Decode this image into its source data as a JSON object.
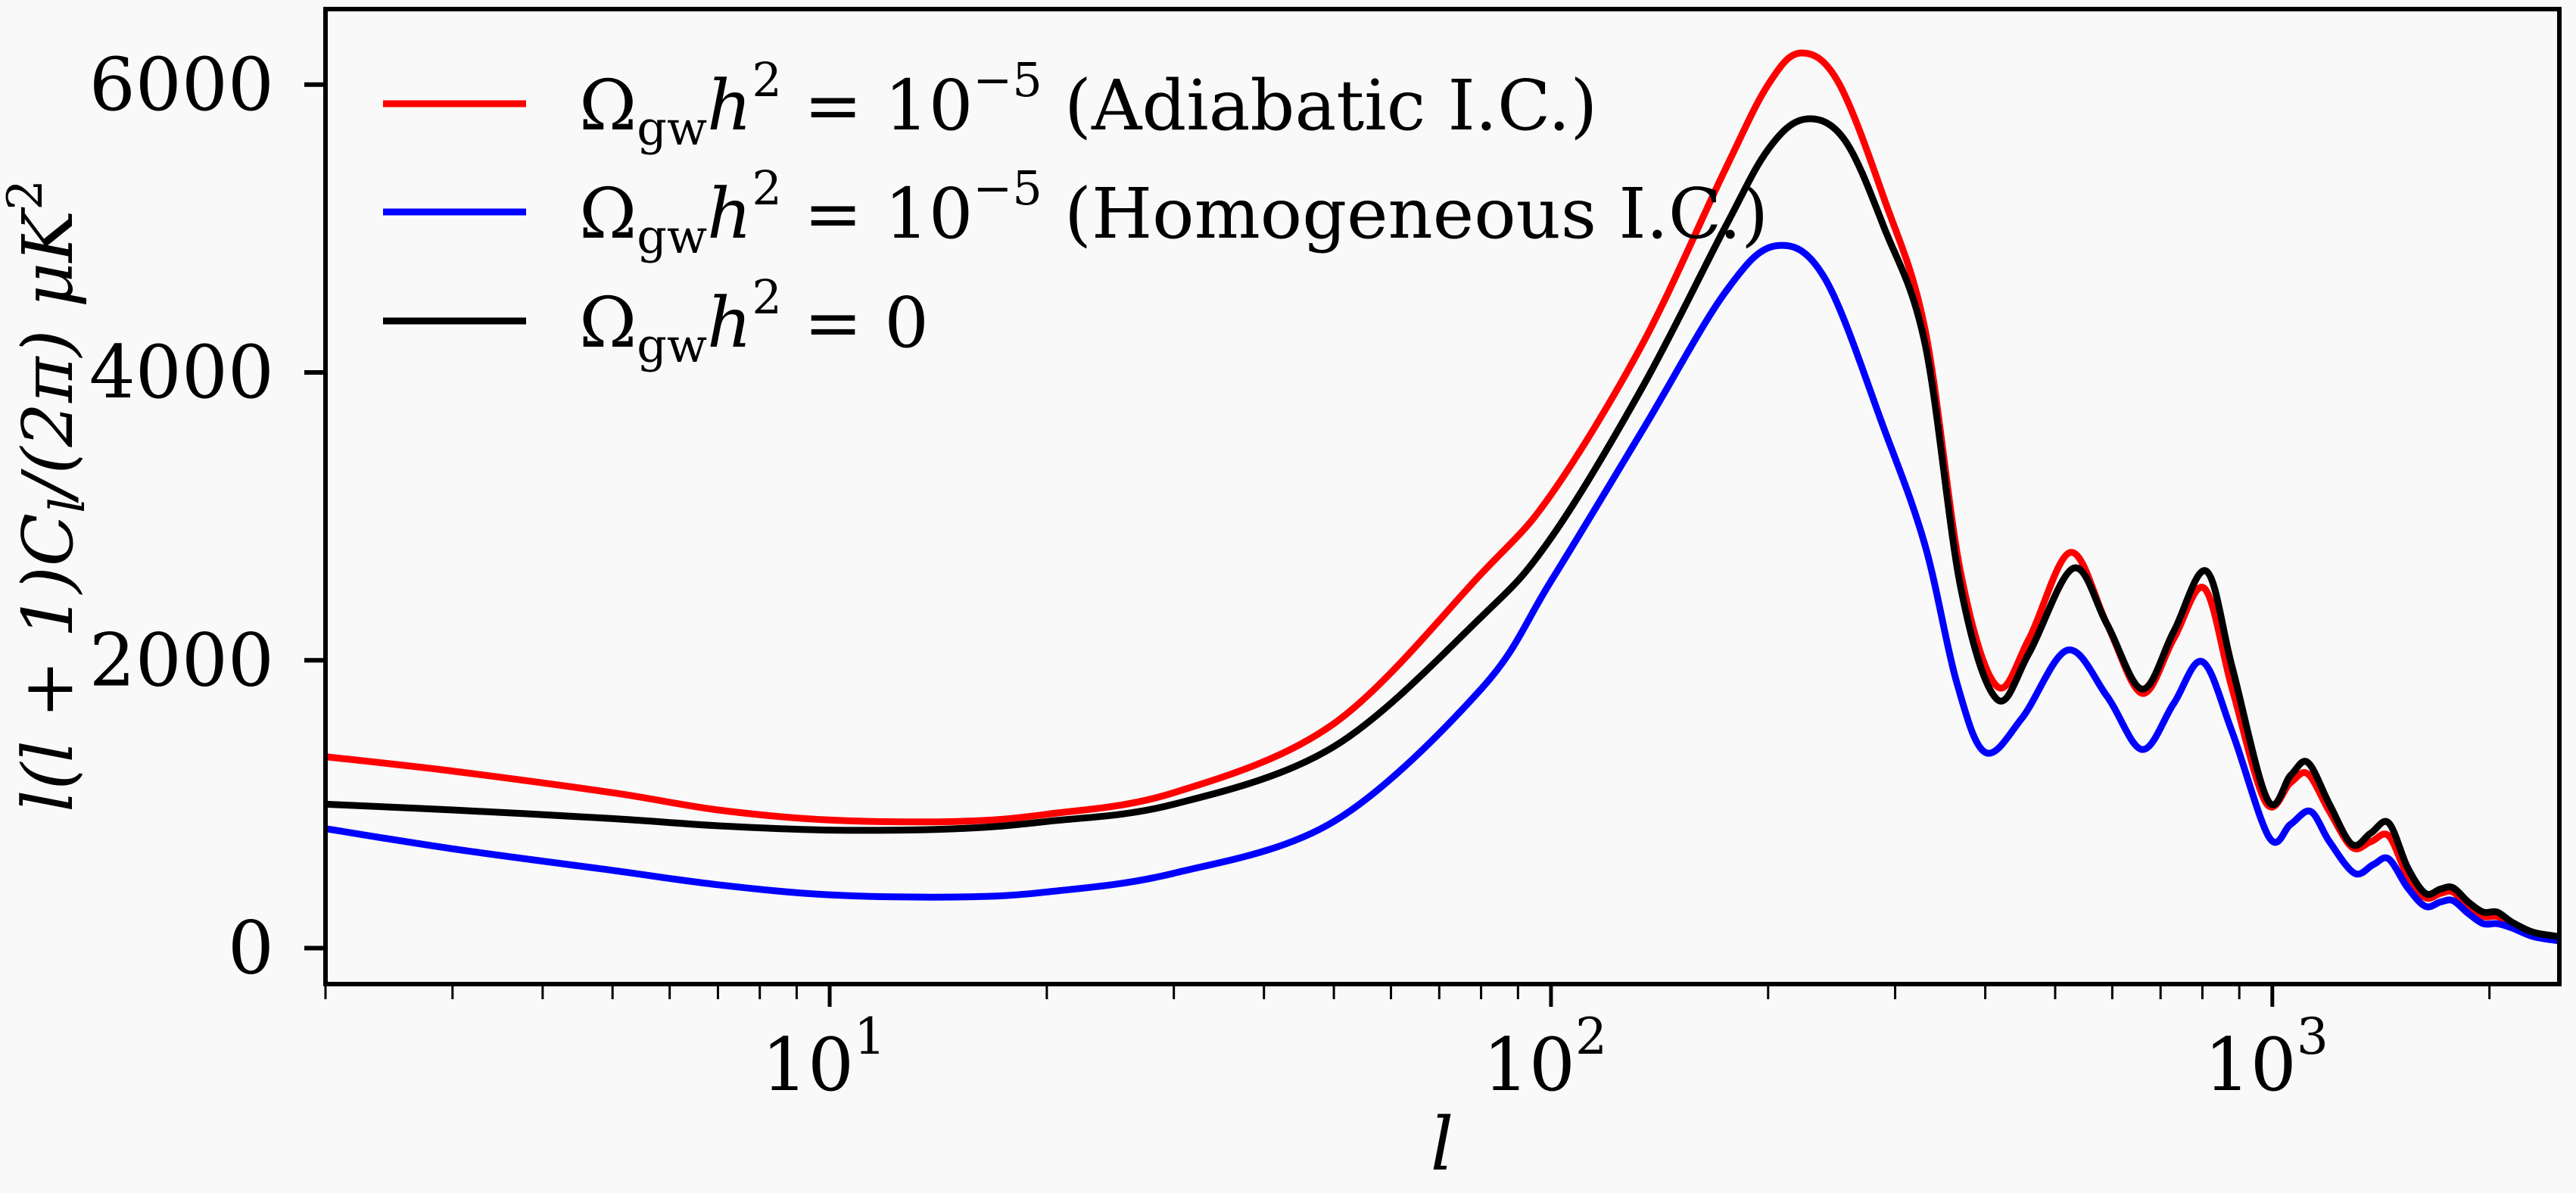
{
  "chart_data": {
    "type": "line",
    "title": "",
    "xlabel": "l",
    "ylabel": "l(l + 1)C_l/(2π)  μK^2",
    "ylabel_parts": {
      "main": "l(l + 1)C",
      "sub": "l",
      "rest": "/(2π)  μK",
      "sup": "2"
    },
    "xscale": "log",
    "xlim": [
      2,
      2500
    ],
    "ylim": [
      -250,
      6525
    ],
    "grid": false,
    "legend_position": "top-left",
    "xticks": [
      {
        "value": 10,
        "base": "10",
        "exp": "1"
      },
      {
        "value": 100,
        "base": "10",
        "exp": "2"
      },
      {
        "value": 1000,
        "base": "10",
        "exp": "3"
      }
    ],
    "yticks": [
      {
        "value": 0,
        "label": "0"
      },
      {
        "value": 2000,
        "label": "2000"
      },
      {
        "value": 4000,
        "label": "4000"
      },
      {
        "value": 6000,
        "label": "6000"
      }
    ],
    "series": [
      {
        "name": "Ωgw h² = 10⁻⁵ (Adiabatic I.C.)",
        "legend": {
          "omega": "Ω",
          "sub": "gw",
          "h": "h",
          "sup": "2",
          "eq": " = 10",
          "exp": "−5",
          "note": " (Adiabatic I.C.)"
        },
        "color": "#ff0000",
        "points": [
          [
            2,
            1330
          ],
          [
            3,
            1230
          ],
          [
            5,
            1080
          ],
          [
            7,
            960
          ],
          [
            10,
            890
          ],
          [
            15,
            880
          ],
          [
            20,
            930
          ],
          [
            30,
            1080
          ],
          [
            50,
            1560
          ],
          [
            80,
            2600
          ],
          [
            100,
            3150
          ],
          [
            134,
            4200
          ],
          [
            174,
            5400
          ],
          [
            200,
            6000
          ],
          [
            222,
            6220
          ],
          [
            250,
            6020
          ],
          [
            290,
            5200
          ],
          [
            330,
            4300
          ],
          [
            370,
            2600
          ],
          [
            415,
            1820
          ],
          [
            460,
            2150
          ],
          [
            525,
            2750
          ],
          [
            590,
            2250
          ],
          [
            660,
            1770
          ],
          [
            730,
            2150
          ],
          [
            805,
            2500
          ],
          [
            880,
            1800
          ],
          [
            980,
            1010
          ],
          [
            1060,
            1150
          ],
          [
            1120,
            1210
          ],
          [
            1200,
            950
          ],
          [
            1290,
            700
          ],
          [
            1370,
            740
          ],
          [
            1450,
            780
          ],
          [
            1540,
            500
          ],
          [
            1630,
            350
          ],
          [
            1710,
            380
          ],
          [
            1780,
            390
          ],
          [
            1870,
            290
          ],
          [
            1960,
            220
          ],
          [
            2050,
            220
          ],
          [
            2150,
            170
          ],
          [
            2300,
            100
          ],
          [
            2500,
            70
          ]
        ]
      },
      {
        "name": "Ωgw h² = 10⁻⁵ (Homogeneous I.C.)",
        "legend": {
          "omega": "Ω",
          "sub": "gw",
          "h": "h",
          "sup": "2",
          "eq": " = 10",
          "exp": "−5",
          "note": " (Homogeneous I.C.)"
        },
        "color": "#0000ff",
        "points": [
          [
            2,
            830
          ],
          [
            3,
            690
          ],
          [
            5,
            540
          ],
          [
            7,
            440
          ],
          [
            10,
            370
          ],
          [
            15,
            355
          ],
          [
            20,
            390
          ],
          [
            30,
            520
          ],
          [
            50,
            880
          ],
          [
            80,
            1800
          ],
          [
            100,
            2550
          ],
          [
            134,
            3600
          ],
          [
            174,
            4550
          ],
          [
            205,
            4880
          ],
          [
            240,
            4650
          ],
          [
            290,
            3600
          ],
          [
            330,
            2800
          ],
          [
            365,
            1850
          ],
          [
            400,
            1360
          ],
          [
            450,
            1600
          ],
          [
            520,
            2070
          ],
          [
            590,
            1750
          ],
          [
            660,
            1380
          ],
          [
            730,
            1700
          ],
          [
            800,
            1990
          ],
          [
            880,
            1500
          ],
          [
            990,
            770
          ],
          [
            1060,
            860
          ],
          [
            1130,
            950
          ],
          [
            1200,
            740
          ],
          [
            1300,
            520
          ],
          [
            1380,
            580
          ],
          [
            1450,
            620
          ],
          [
            1540,
            420
          ],
          [
            1630,
            290
          ],
          [
            1710,
            320
          ],
          [
            1780,
            330
          ],
          [
            1870,
            240
          ],
          [
            1960,
            170
          ],
          [
            2050,
            170
          ],
          [
            2150,
            140
          ],
          [
            2300,
            80
          ],
          [
            2500,
            50
          ]
        ]
      },
      {
        "name": "Ωgw h² = 0",
        "legend": {
          "omega": "Ω",
          "sub": "gw",
          "h": "h",
          "sup": "2",
          "eq": " = 0",
          "exp": "",
          "note": ""
        },
        "color": "#000000",
        "points": [
          [
            2,
            1000
          ],
          [
            3,
            960
          ],
          [
            5,
            900
          ],
          [
            7,
            850
          ],
          [
            10,
            820
          ],
          [
            15,
            830
          ],
          [
            20,
            880
          ],
          [
            30,
            1000
          ],
          [
            50,
            1400
          ],
          [
            80,
            2300
          ],
          [
            100,
            2850
          ],
          [
            134,
            3900
          ],
          [
            174,
            5000
          ],
          [
            200,
            5550
          ],
          [
            225,
            5760
          ],
          [
            255,
            5620
          ],
          [
            290,
            5000
          ],
          [
            330,
            4200
          ],
          [
            370,
            2500
          ],
          [
            415,
            1730
          ],
          [
            460,
            2050
          ],
          [
            530,
            2640
          ],
          [
            590,
            2250
          ],
          [
            660,
            1800
          ],
          [
            730,
            2200
          ],
          [
            810,
            2620
          ],
          [
            880,
            1950
          ],
          [
            985,
            1030
          ],
          [
            1060,
            1200
          ],
          [
            1120,
            1290
          ],
          [
            1200,
            1000
          ],
          [
            1290,
            720
          ],
          [
            1370,
            800
          ],
          [
            1450,
            870
          ],
          [
            1540,
            560
          ],
          [
            1630,
            380
          ],
          [
            1710,
            410
          ],
          [
            1780,
            420
          ],
          [
            1870,
            320
          ],
          [
            1960,
            250
          ],
          [
            2050,
            250
          ],
          [
            2150,
            180
          ],
          [
            2300,
            110
          ],
          [
            2500,
            80
          ]
        ]
      }
    ]
  }
}
